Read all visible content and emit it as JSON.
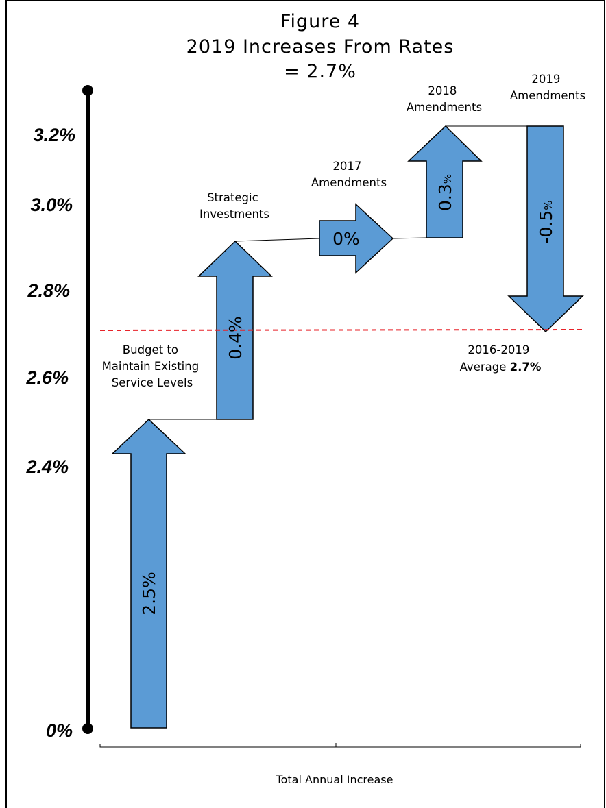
{
  "chart_data": {
    "type": "waterfall",
    "title": "Figure 4",
    "subtitle_line1": "2019 Increases From Rates",
    "subtitle_line2": "= 2.7%",
    "xlabel": "Total Annual Increase",
    "y_tick_labels": [
      "0%",
      "2.4%",
      "2.6%",
      "2.8%",
      "3.0%",
      "3.2%"
    ],
    "steps": [
      {
        "label_lines": [
          "Budget to",
          "Maintain Existing",
          "Service Levels"
        ],
        "value": 2.5,
        "value_text": "2.5%",
        "start": 0.0,
        "end": 2.5
      },
      {
        "label_lines": [
          "Strategic",
          "Investments"
        ],
        "value": 0.4,
        "value_text": "0.4%",
        "start": 2.5,
        "end": 2.9
      },
      {
        "label_lines": [
          "2017",
          "Amendments"
        ],
        "value": 0.0,
        "value_text": "0%",
        "start": 2.9,
        "end": 2.9
      },
      {
        "label_lines": [
          "2018",
          "Amendments"
        ],
        "value": 0.3,
        "value_text_main": "0.3",
        "value_text_suffix": "%",
        "start": 2.9,
        "end": 3.2
      },
      {
        "label_lines": [
          "2019",
          "Amendments"
        ],
        "value": -0.5,
        "value_text_main": "-0.5",
        "value_text_suffix": "%",
        "start": 3.2,
        "end": 2.7
      }
    ],
    "average_line": {
      "value": 2.7,
      "label_line1": "2016-2019",
      "label_prefix": "Average ",
      "label_bold": "2.7%"
    },
    "colors": {
      "arrow_fill": "#5b9bd5",
      "arrow_stroke": "#000000",
      "average_line": "#e8232a",
      "axis": "#000000"
    }
  }
}
